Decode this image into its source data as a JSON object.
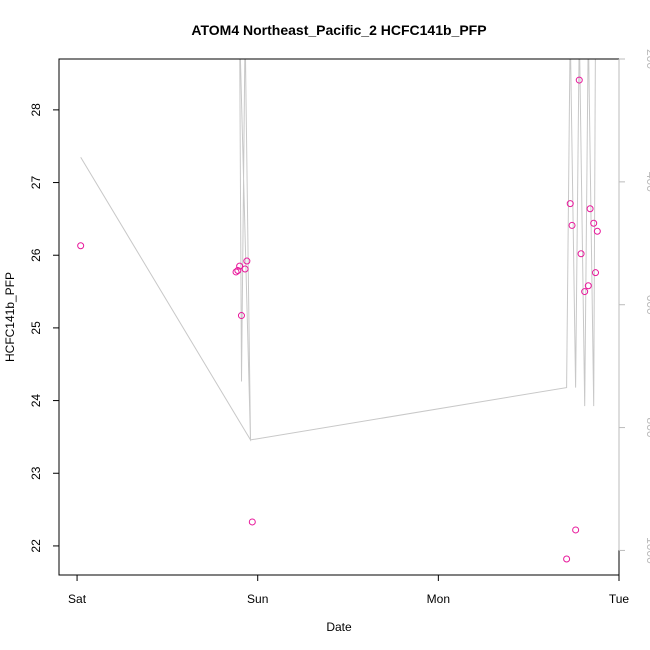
{
  "chart_data": {
    "type": "scatter",
    "title": "ATOM4 Northeast_Pacific_2 HCFC141b_PFP",
    "xlabel": "Date",
    "ylabel": "HCFC141b_PFP",
    "x_axis": {
      "ticks": [
        {
          "label": "Sat",
          "day": 0
        },
        {
          "label": "Sun",
          "day": 1
        },
        {
          "label": "Mon",
          "day": 2
        },
        {
          "label": "Tue",
          "day": 3
        }
      ],
      "range_days": [
        -0.1,
        3.0
      ]
    },
    "y_axis_left": {
      "ticks": [
        "22",
        "23",
        "24",
        "25",
        "26",
        "27",
        "28"
      ],
      "range": [
        21.6,
        28.7
      ]
    },
    "y_axis_right": {
      "ticks": [
        "200",
        "400",
        "600",
        "800",
        "1000"
      ],
      "range": [
        1040,
        200
      ],
      "color": "#bbbbbb"
    },
    "series": [
      {
        "kind": "points",
        "color": "#e8189b",
        "points": [
          {
            "x": 0.02,
            "y": 26.13
          },
          {
            "x": 0.88,
            "y": 25.77
          },
          {
            "x": 0.89,
            "y": 25.79
          },
          {
            "x": 0.9,
            "y": 25.85
          },
          {
            "x": 0.91,
            "y": 25.17
          },
          {
            "x": 0.93,
            "y": 25.81
          },
          {
            "x": 0.94,
            "y": 25.92
          },
          {
            "x": 0.97,
            "y": 22.33
          },
          {
            "x": 2.71,
            "y": 21.82
          },
          {
            "x": 2.73,
            "y": 26.71
          },
          {
            "x": 2.74,
            "y": 26.41
          },
          {
            "x": 2.76,
            "y": 22.22
          },
          {
            "x": 2.78,
            "y": 28.41
          },
          {
            "x": 2.79,
            "y": 26.02
          },
          {
            "x": 2.81,
            "y": 25.5
          },
          {
            "x": 2.83,
            "y": 25.58
          },
          {
            "x": 2.84,
            "y": 26.64
          },
          {
            "x": 2.86,
            "y": 26.44
          },
          {
            "x": 2.87,
            "y": 25.76
          },
          {
            "x": 2.88,
            "y": 26.33
          }
        ]
      },
      {
        "kind": "line",
        "axis": "right",
        "color": "#c8c8c8",
        "points": [
          {
            "x": 0.02,
            "y": 360
          },
          {
            "x": 0.96,
            "y": 820
          },
          {
            "x": 0.9,
            "y": 150
          },
          {
            "x": 0.91,
            "y": 725
          },
          {
            "x": 0.93,
            "y": 150
          },
          {
            "x": 0.96,
            "y": 820
          },
          {
            "x": 2.71,
            "y": 735
          },
          {
            "x": 2.73,
            "y": 150
          },
          {
            "x": 2.76,
            "y": 735
          },
          {
            "x": 2.78,
            "y": 150
          },
          {
            "x": 2.81,
            "y": 765
          },
          {
            "x": 2.83,
            "y": 150
          },
          {
            "x": 2.86,
            "y": 765
          },
          {
            "x": 2.87,
            "y": 150
          }
        ]
      }
    ]
  }
}
